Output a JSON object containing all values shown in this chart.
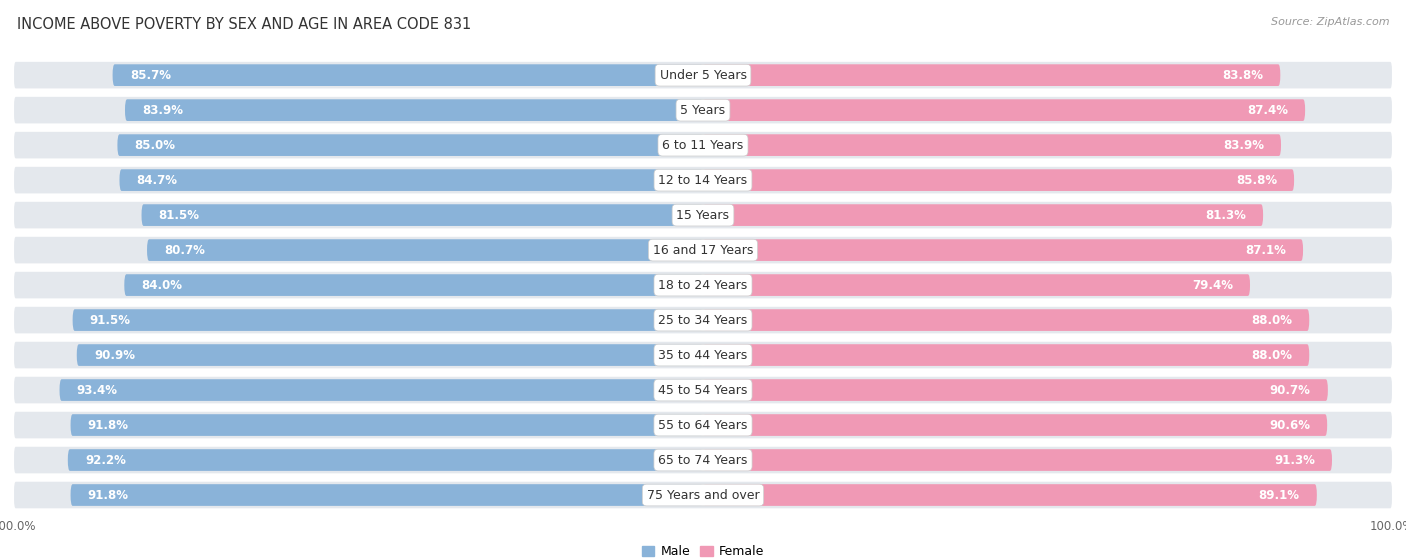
{
  "title": "INCOME ABOVE POVERTY BY SEX AND AGE IN AREA CODE 831",
  "source": "Source: ZipAtlas.com",
  "categories": [
    "Under 5 Years",
    "5 Years",
    "6 to 11 Years",
    "12 to 14 Years",
    "15 Years",
    "16 and 17 Years",
    "18 to 24 Years",
    "25 to 34 Years",
    "35 to 44 Years",
    "45 to 54 Years",
    "55 to 64 Years",
    "65 to 74 Years",
    "75 Years and over"
  ],
  "male_values": [
    85.7,
    83.9,
    85.0,
    84.7,
    81.5,
    80.7,
    84.0,
    91.5,
    90.9,
    93.4,
    91.8,
    92.2,
    91.8
  ],
  "female_values": [
    83.8,
    87.4,
    83.9,
    85.8,
    81.3,
    87.1,
    79.4,
    88.0,
    88.0,
    90.7,
    90.6,
    91.3,
    89.1
  ],
  "male_color": "#8ab3d9",
  "female_color": "#f099b5",
  "male_label": "Male",
  "female_label": "Female",
  "bar_height": 0.62,
  "row_bg_color": "#e8ecf0",
  "row_bg_inner": "#f5f6f8",
  "xlim_left": -100,
  "xlim_right": 100,
  "title_fontsize": 10.5,
  "label_fontsize": 9,
  "value_fontsize": 8.5,
  "source_fontsize": 8,
  "background_color": "#ffffff"
}
